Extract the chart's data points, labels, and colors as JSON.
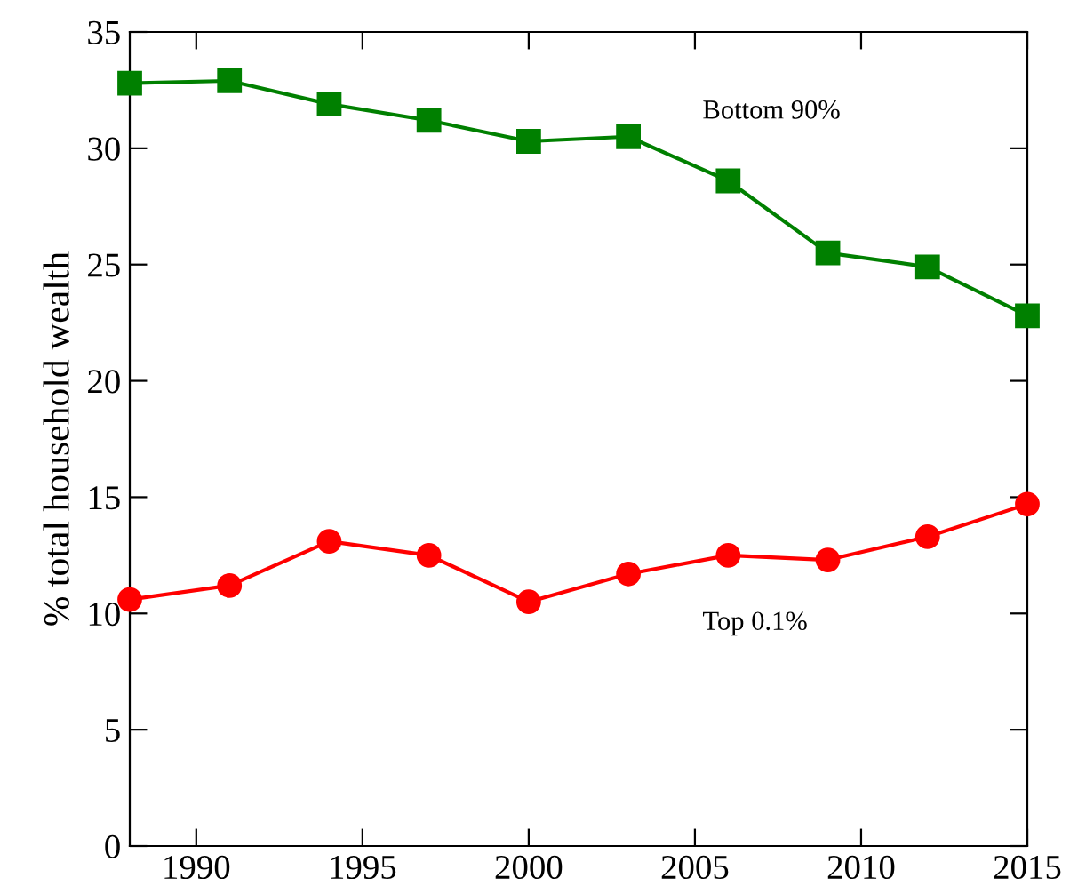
{
  "chart_data": {
    "type": "line",
    "ylabel": "% total household wealth",
    "x": [
      1988,
      1991,
      1994,
      1997,
      2000,
      2003,
      2006,
      2009,
      2012,
      2015
    ],
    "series": [
      {
        "name": "Bottom 90%",
        "color": "#008000",
        "marker": "square",
        "values": [
          32.8,
          32.9,
          31.9,
          31.2,
          30.3,
          30.5,
          28.6,
          25.5,
          24.9,
          22.8
        ]
      },
      {
        "name": "Top 0.1%",
        "color": "#ff0000",
        "marker": "circle",
        "values": [
          10.6,
          11.2,
          13.1,
          12.5,
          10.5,
          11.7,
          12.5,
          12.3,
          13.3,
          14.7
        ]
      }
    ],
    "xlim": [
      1988,
      2015
    ],
    "xticks": [
      1990,
      1995,
      2000,
      2005,
      2010,
      2015
    ],
    "ylim": [
      0,
      35
    ],
    "yticks": [
      0,
      5,
      10,
      15,
      20,
      25,
      30,
      35
    ],
    "grid": false,
    "legend": false,
    "line_style": "solid"
  }
}
